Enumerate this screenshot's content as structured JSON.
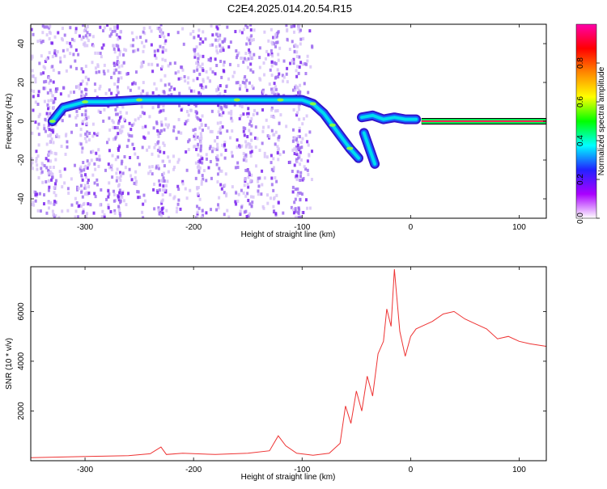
{
  "title": "C2E4.2025.014.20.54.R15",
  "colors": {
    "snr_line": "#ee3333",
    "frame": "#000000"
  },
  "chart_data": [
    {
      "type": "heatmap",
      "xlabel": "Height of straight line (km)",
      "ylabel": "Frequency (Hz)",
      "xlim": [
        -350,
        125
      ],
      "ylim": [
        -50,
        50
      ],
      "x_ticks": [
        -300,
        -200,
        -100,
        0,
        100
      ],
      "y_ticks": [
        -40,
        -20,
        0,
        20,
        40
      ],
      "colorbar": {
        "label": "Normalized spectral amplitude",
        "range": [
          0,
          1
        ],
        "ticks": [
          "0.0",
          "0.2",
          "0.4",
          "0.6",
          "0.8"
        ],
        "stops": [
          "#ffffff",
          "#aa00ff",
          "#2222ff",
          "#00ffff",
          "#00ff00",
          "#ffff00",
          "#ff8800",
          "#ff0000",
          "#ff00aa"
        ]
      },
      "track": [
        {
          "x": -330,
          "y": 0
        },
        {
          "x": -320,
          "y": 7
        },
        {
          "x": -300,
          "y": 10
        },
        {
          "x": -280,
          "y": 10
        },
        {
          "x": -250,
          "y": 11
        },
        {
          "x": -200,
          "y": 11
        },
        {
          "x": -160,
          "y": 11
        },
        {
          "x": -140,
          "y": 11
        },
        {
          "x": -120,
          "y": 11
        },
        {
          "x": -100,
          "y": 11
        },
        {
          "x": -90,
          "y": 9
        },
        {
          "x": -80,
          "y": 4
        },
        {
          "x": -72,
          "y": -2
        },
        {
          "x": -64,
          "y": -8
        },
        {
          "x": -56,
          "y": -14
        },
        {
          "x": -48,
          "y": -19
        }
      ],
      "track_branch": [
        {
          "x": -43,
          "y": -6
        },
        {
          "x": -38,
          "y": -14
        },
        {
          "x": -33,
          "y": -22
        }
      ],
      "track_right": [
        {
          "x": -45,
          "y": 2
        },
        {
          "x": -35,
          "y": 3
        },
        {
          "x": -25,
          "y": 1
        },
        {
          "x": -15,
          "y": 2
        },
        {
          "x": -5,
          "y": 1
        },
        {
          "x": 5,
          "y": 1
        }
      ],
      "line_segment": {
        "x_start": 10,
        "x_end": 125,
        "y": 0
      }
    },
    {
      "type": "line",
      "xlabel": "Height of straight line (km)",
      "ylabel": "SNR (10 * v/v)",
      "xlim": [
        -350,
        125
      ],
      "ylim": [
        0,
        7800
      ],
      "x_ticks": [
        -300,
        -200,
        -100,
        0,
        100
      ],
      "y_ticks": [
        2000,
        4000,
        6000
      ],
      "series": [
        {
          "x": [
            -350,
            -320,
            -290,
            -260,
            -240,
            -230,
            -225,
            -210,
            -180,
            -150,
            -130,
            -122,
            -115,
            -105,
            -90,
            -75,
            -65,
            -60,
            -55,
            -50,
            -45,
            -40,
            -35,
            -30,
            -25,
            -22,
            -18,
            -15,
            -10,
            -5,
            0,
            5,
            10,
            20,
            30,
            40,
            50,
            60,
            70,
            80,
            90,
            100,
            110,
            125
          ],
          "y": [
            120,
            150,
            180,
            200,
            280,
            550,
            250,
            300,
            250,
            300,
            400,
            1000,
            600,
            300,
            220,
            300,
            700,
            2200,
            1500,
            2800,
            2000,
            3400,
            2600,
            4300,
            4800,
            6100,
            5400,
            7700,
            5200,
            4200,
            5000,
            5300,
            5400,
            5600,
            5900,
            6000,
            5700,
            5500,
            5300,
            4900,
            5000,
            4800,
            4700,
            4600
          ]
        }
      ]
    }
  ]
}
